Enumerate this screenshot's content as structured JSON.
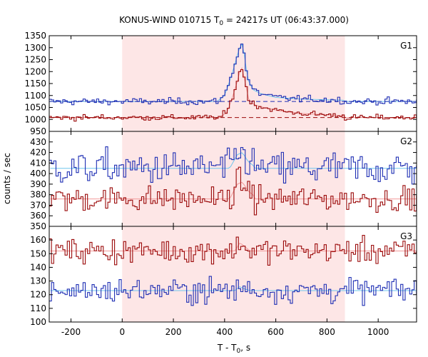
{
  "chart_data": {
    "type": "line",
    "title_prefix": "KONUS-WIND 010715 T",
    "title_sub": "0",
    "title_suffix": " = 24217s UT (06:43:37.000)",
    "xlabel_prefix": "T - T",
    "xlabel_sub": "0",
    "xlabel_suffix": ", s",
    "ylabel": "counts / sec",
    "xlim": [
      -285,
      1150
    ],
    "x_ticks": [
      -200,
      0,
      200,
      400,
      600,
      800,
      1000
    ],
    "x_tick_labels": [
      "-200",
      "0",
      "200",
      "400",
      "600",
      "800",
      "1000"
    ],
    "shaded_interval": [
      0,
      870
    ],
    "shade_color": "#fde6e6",
    "bin_width": 8.8,
    "panels": [
      {
        "label": "G1",
        "ylim": [
          950,
          1350
        ],
        "y_ticks": [
          950,
          1000,
          1050,
          1100,
          1150,
          1200,
          1250,
          1300,
          1350
        ],
        "y_tick_labels": [
          "950",
          "1000",
          "1050",
          "1100",
          "1150",
          "1200",
          "1250",
          "1300",
          "1350"
        ],
        "series": [
          {
            "color": "#1f2fb4",
            "fit_color": "#6ec6ee",
            "background_level": 1075,
            "background_dashed": true,
            "noise": 7,
            "x_start": -285,
            "x_end": 1150,
            "peak": {
              "points": [
                [
                  370,
                  1075
                ],
                [
                  400,
                  1100
                ],
                [
                  420,
                  1160
                ],
                [
                  440,
                  1230
                ],
                [
                  455,
                  1290
                ],
                [
                  470,
                  1320
                ],
                [
                  480,
                  1250
                ],
                [
                  490,
                  1170
                ],
                [
                  510,
                  1125
                ],
                [
                  540,
                  1108
                ],
                [
                  600,
                  1092
                ],
                [
                  700,
                  1085
                ],
                [
                  870,
                  1080
                ]
              ]
            }
          },
          {
            "color": "#9b0a0a",
            "fit_color": "#f29a9a",
            "background_level": 1008,
            "background_dashed": true,
            "noise": 6,
            "x_start": -285,
            "x_end": 1150,
            "peak": {
              "points": [
                [
                  380,
                  1008
                ],
                [
                  410,
                  1030
                ],
                [
                  430,
                  1090
                ],
                [
                  450,
                  1160
                ],
                [
                  465,
                  1225
                ],
                [
                  480,
                  1160
                ],
                [
                  495,
                  1080
                ],
                [
                  520,
                  1060
                ],
                [
                  560,
                  1048
                ],
                [
                  620,
                  1035
                ],
                [
                  700,
                  1025
                ],
                [
                  870,
                  1015
                ]
              ]
            }
          }
        ]
      },
      {
        "label": "G2",
        "ylim": [
          350,
          440
        ],
        "y_ticks": [
          350,
          360,
          370,
          380,
          390,
          400,
          410,
          420,
          430
        ],
        "y_tick_labels": [
          "350",
          "360",
          "370",
          "380",
          "390",
          "400",
          "410",
          "420",
          "430"
        ],
        "series": [
          {
            "color": "#1f2fb4",
            "fit_color": "#6ec6ee",
            "background_level": 405,
            "background_dashed": false,
            "noise": 8,
            "x_start": -285,
            "x_end": 1150,
            "peak": {
              "points": [
                [
                  420,
                  405
                ],
                [
                  450,
                  418
                ],
                [
                  470,
                  420
                ],
                [
                  490,
                  412
                ],
                [
                  520,
                  406
                ]
              ]
            }
          },
          {
            "color": "#9b0a0a",
            "fit_color": "#f29a9a",
            "background_level": 376,
            "background_dashed": false,
            "noise": 6,
            "x_start": -285,
            "x_end": 1150,
            "peak": {
              "points": [
                [
                  420,
                  376
                ],
                [
                  450,
                  390
                ],
                [
                  470,
                  392
                ],
                [
                  490,
                  384
                ],
                [
                  520,
                  378
                ]
              ]
            }
          }
        ]
      },
      {
        "label": "G3",
        "ylim": [
          100,
          170
        ],
        "y_ticks": [
          100,
          110,
          120,
          130,
          140,
          150,
          160
        ],
        "y_tick_labels": [
          "100",
          "110",
          "120",
          "130",
          "140",
          "150",
          "160"
        ],
        "series": [
          {
            "color": "#9b0a0a",
            "fit_color": "#f29a9a",
            "background_level": 152,
            "background_dashed": false,
            "noise": 4.5,
            "x_start": -285,
            "x_end": 1150,
            "peak": {
              "points": [
                [
                  440,
                  152
                ],
                [
                  460,
                  158
                ],
                [
                  480,
                  155
                ],
                [
                  500,
                  152
                ]
              ]
            }
          },
          {
            "color": "#1f2fb4",
            "fit_color": "#6ec6ee",
            "background_level": 123,
            "background_dashed": false,
            "noise": 4.5,
            "x_start": -285,
            "x_end": 1150,
            "peak": {
              "points": [
                [
                  440,
                  123
                ],
                [
                  460,
                  126
                ],
                [
                  480,
                  124
                ],
                [
                  500,
                  123
                ]
              ]
            }
          }
        ]
      }
    ]
  }
}
